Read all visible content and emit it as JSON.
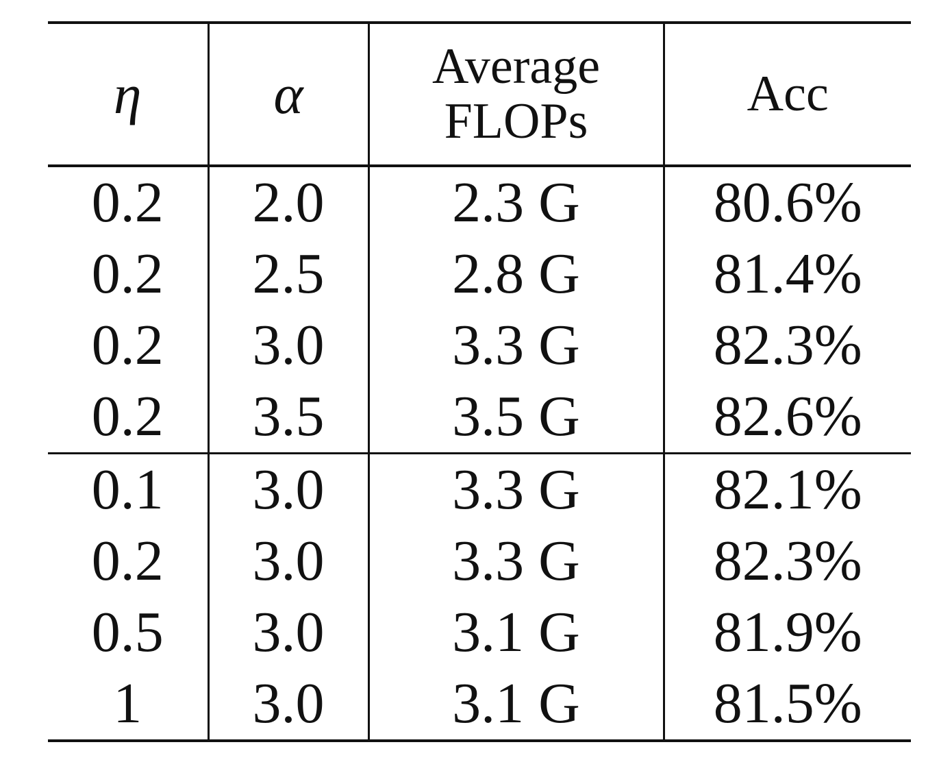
{
  "table": {
    "headers": {
      "eta": "η",
      "alpha": "α",
      "flops_line1": "Average",
      "flops_line2": "FLOPs",
      "acc": "Acc"
    },
    "group_1": [
      {
        "eta": "0.2",
        "alpha": "2.0",
        "flops": "2.3 G",
        "acc": "80.6%"
      },
      {
        "eta": "0.2",
        "alpha": "2.5",
        "flops": "2.8 G",
        "acc": "81.4%"
      },
      {
        "eta": "0.2",
        "alpha": "3.0",
        "flops": "3.3 G",
        "acc": "82.3%"
      },
      {
        "eta": "0.2",
        "alpha": "3.5",
        "flops": "3.5 G",
        "acc": "82.6%"
      }
    ],
    "group_2": [
      {
        "eta": "0.1",
        "alpha": "3.0",
        "flops": "3.3 G",
        "acc": "82.1%"
      },
      {
        "eta": "0.2",
        "alpha": "3.0",
        "flops": "3.3 G",
        "acc": "82.3%"
      },
      {
        "eta": "0.5",
        "alpha": "3.0",
        "flops": "3.1 G",
        "acc": "81.9%"
      },
      {
        "eta": "1",
        "alpha": "3.0",
        "flops": "3.1 G",
        "acc": "81.5%"
      }
    ]
  }
}
